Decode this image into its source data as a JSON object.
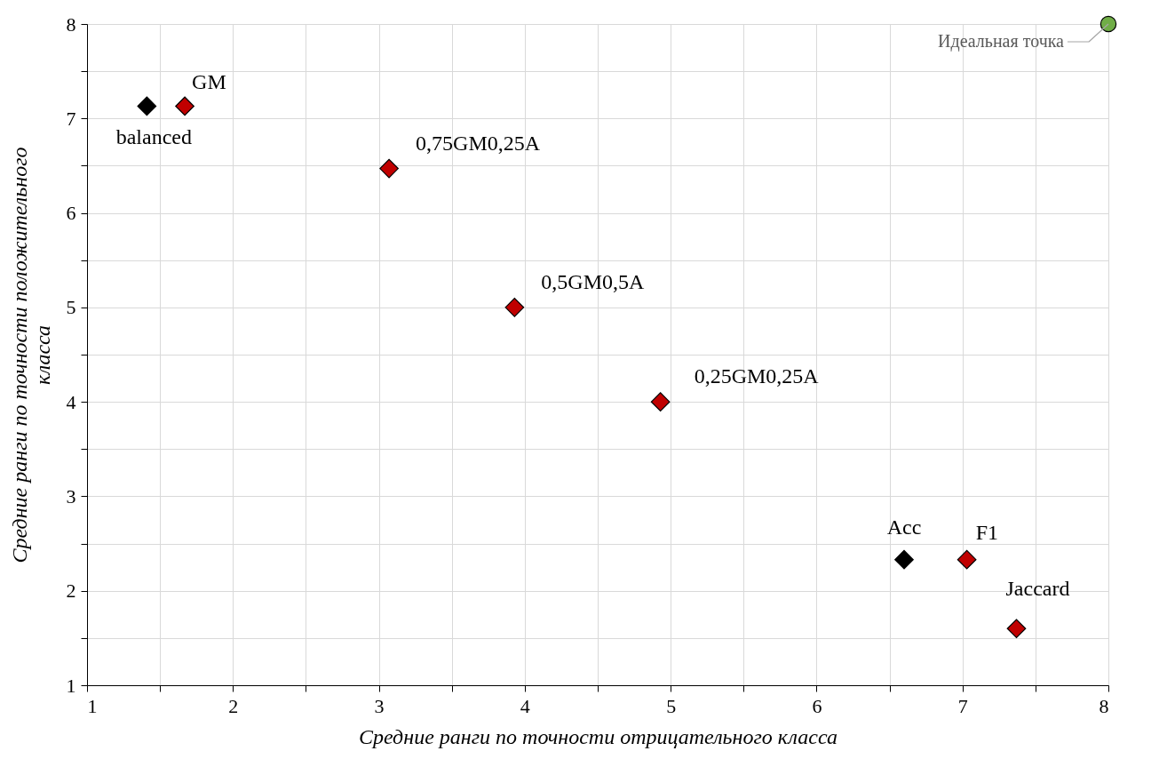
{
  "chart_data": {
    "type": "scatter",
    "xlabel": "Средние ранги по точности отрицательного класса",
    "ylabel": "Средние ранги по точности положительного класса",
    "series": [
      {
        "color": "#000000",
        "marker": "diamond",
        "x": [
          1.41,
          6.6
        ],
        "values": [
          7.13,
          2.33
        ]
      },
      {
        "color": "#c00000",
        "marker": "diamond",
        "x": [
          1.67,
          3.07,
          3.93,
          4.93,
          7.03,
          7.37
        ],
        "values": [
          7.13,
          6.47,
          5.0,
          4.0,
          2.33,
          1.6
        ]
      },
      {
        "color": "#70ad47",
        "marker": "circle",
        "x": [
          8
        ],
        "values": [
          8
        ]
      }
    ],
    "annotations": [
      {
        "text": "balanced",
        "x": 1.41,
        "y": 7.13
      },
      {
        "text": "GM",
        "x": 1.67,
        "y": 7.13
      },
      {
        "text": "0,75GM0,25A",
        "x": 3.07,
        "y": 6.47
      },
      {
        "text": "0,5GM0,5A",
        "x": 3.93,
        "y": 5.0
      },
      {
        "text": "0,25GM0,25A",
        "x": 4.93,
        "y": 4.0
      },
      {
        "text": "Acc",
        "x": 6.6,
        "y": 2.33
      },
      {
        "text": "F1",
        "x": 7.03,
        "y": 2.33
      },
      {
        "text": "Jaccard",
        "x": 7.37,
        "y": 1.6
      },
      {
        "text": "Идеальная точка",
        "x": 8,
        "y": 8
      }
    ],
    "xlim": [
      1,
      8
    ],
    "ylim": [
      1,
      8
    ],
    "xticks": [
      1,
      {
        "value": 1.5,
        "label": null
      },
      2,
      {
        "value": 2.5,
        "label": null
      },
      3,
      {
        "value": 3.5,
        "label": null
      },
      4,
      {
        "value": 4.5,
        "label": null
      },
      5,
      {
        "value": 5.5,
        "label": null
      },
      6,
      {
        "value": 6.5,
        "label": null
      },
      7,
      {
        "value": 7.5,
        "label": null
      },
      8
    ],
    "yticks": [
      1,
      {
        "value": 1.5,
        "label": null
      },
      2,
      {
        "value": 2.5,
        "label": null
      },
      3,
      {
        "value": 3.5,
        "label": null
      },
      4,
      {
        "value": 4.5,
        "label": null
      },
      5,
      {
        "value": 5.5,
        "label": null
      },
      6,
      {
        "value": 6.5,
        "label": null
      },
      7,
      {
        "value": 7.5,
        "label": null
      },
      8
    ],
    "grid": true
  }
}
